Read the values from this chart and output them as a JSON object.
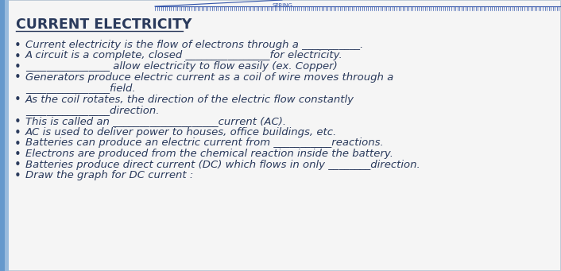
{
  "title": "CURRENT ELECTRICITY",
  "background_color": "#f5f5f5",
  "title_color": "#2a3a5c",
  "text_color": "#2a3a5c",
  "left_border_color": "#6699cc",
  "left_border_color2": "#99bbdd",
  "font_size": 9.5,
  "title_font_size": 12.5,
  "bullet_lines": [
    "Current electricity is the flow of electrons through a ___________.",
    "A circuit is a complete, closed ________________for electricity.",
    "________________ allow electricity to flow easily (ex. Copper)",
    "Generators produce electric current as a coil of wire moves through a\n________________field.",
    "As the coil rotates, the direction of the electric flow constantly\n________________direction.",
    "This is called an ____________________current (AC).",
    "AC is used to deliver power to houses, office buildings, etc.",
    "Batteries can produce an electric current from ___________reactions.",
    "Electrons are produced from the chemical reaction inside the battery.",
    "Batteries produce direct current (DC) which flows in only ________direction.",
    "Draw the graph for DC current :"
  ],
  "ruler_color": "#3355aa",
  "n_ticks": 200,
  "figsize": [
    7.06,
    3.41
  ],
  "dpi": 100
}
